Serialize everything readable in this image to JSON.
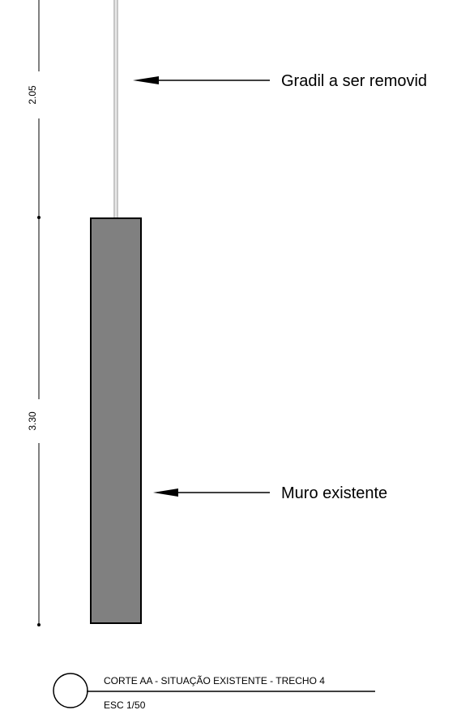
{
  "dimensions": {
    "upper": "2.05",
    "lower": "3.30"
  },
  "callouts": {
    "railing": "Gradil a ser removid",
    "wall": "Muro existente"
  },
  "title_block": {
    "title": "CORTE AA - SITUAÇÃO EXISTENTE - TRECHO 4",
    "scale": "ESC 1/50"
  },
  "colors": {
    "wall_fill": "#808080",
    "line": "#000000",
    "railing": "#8c8c8c"
  }
}
